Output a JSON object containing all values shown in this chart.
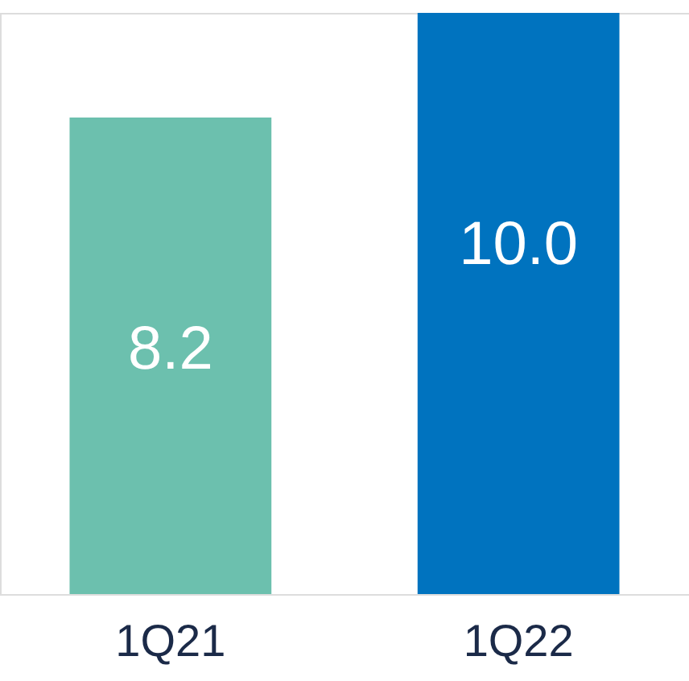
{
  "chart_data": {
    "type": "bar",
    "categories": [
      "1Q21",
      "1Q22"
    ],
    "values": [
      8.2,
      10.0
    ],
    "colors": [
      "#6cc0ae",
      "#0073bf"
    ],
    "value_labels": [
      "8.2",
      "10.0"
    ]
  }
}
